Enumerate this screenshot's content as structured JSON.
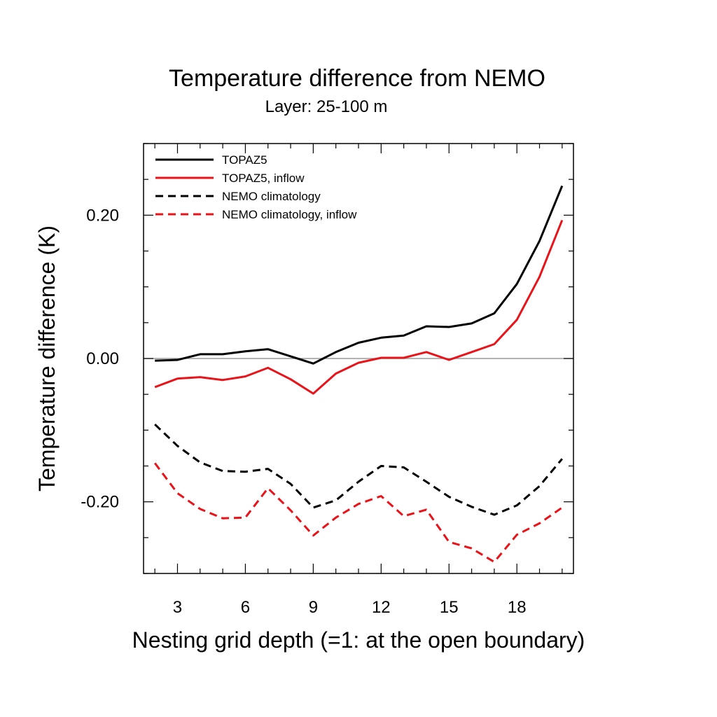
{
  "chart_data": {
    "type": "line",
    "title": "Temperature difference from NEMO",
    "subtitle": "Layer: 25-100 m",
    "xlabel": "Nesting grid depth (=1: at the open boundary)",
    "ylabel": "Temperature difference (K)",
    "xlim": [
      1.5,
      20.5
    ],
    "ylim": [
      -0.3,
      0.3
    ],
    "x_ticks": [
      3,
      6,
      9,
      12,
      15,
      18
    ],
    "x_tick_labels": [
      "3",
      "6",
      "9",
      "12",
      "15",
      "18"
    ],
    "y_ticks": [
      0.2,
      0.0,
      -0.2
    ],
    "y_tick_labels": [
      "0.20",
      "0.00",
      "-0.20"
    ],
    "zero_line": true,
    "grid": false,
    "legend_position": "top-left",
    "x": [
      2,
      3,
      4,
      5,
      6,
      7,
      8,
      9,
      10,
      11,
      12,
      13,
      14,
      15,
      16,
      17,
      18,
      19,
      20
    ],
    "series": [
      {
        "name": "TOPAZ5",
        "color": "#000000",
        "dash": "solid",
        "values": [
          -0.003,
          -0.002,
          0.006,
          0.006,
          0.01,
          0.013,
          0.003,
          -0.007,
          0.009,
          0.022,
          0.029,
          0.032,
          0.045,
          0.044,
          0.049,
          0.063,
          0.104,
          0.164,
          0.241
        ]
      },
      {
        "name": "TOPAZ5, inflow",
        "color": "#e8141a",
        "dash": "solid",
        "values": [
          -0.04,
          -0.028,
          -0.026,
          -0.03,
          -0.025,
          -0.013,
          -0.029,
          -0.049,
          -0.021,
          -0.006,
          0.001,
          0.001,
          0.009,
          -0.002,
          0.009,
          0.02,
          0.054,
          0.114,
          0.193
        ]
      },
      {
        "name": "NEMO climatology",
        "color": "#000000",
        "dash": "dashed",
        "values": [
          -0.092,
          -0.122,
          -0.145,
          -0.157,
          -0.158,
          -0.154,
          -0.175,
          -0.208,
          -0.198,
          -0.172,
          -0.15,
          -0.152,
          -0.172,
          -0.193,
          -0.207,
          -0.218,
          -0.205,
          -0.178,
          -0.14
        ]
      },
      {
        "name": "NEMO climatology, inflow",
        "color": "#e8141a",
        "dash": "dashed",
        "values": [
          -0.146,
          -0.188,
          -0.21,
          -0.223,
          -0.222,
          -0.181,
          -0.212,
          -0.247,
          -0.222,
          -0.203,
          -0.192,
          -0.22,
          -0.211,
          -0.256,
          -0.265,
          -0.284,
          -0.246,
          -0.23,
          -0.208
        ]
      }
    ]
  }
}
